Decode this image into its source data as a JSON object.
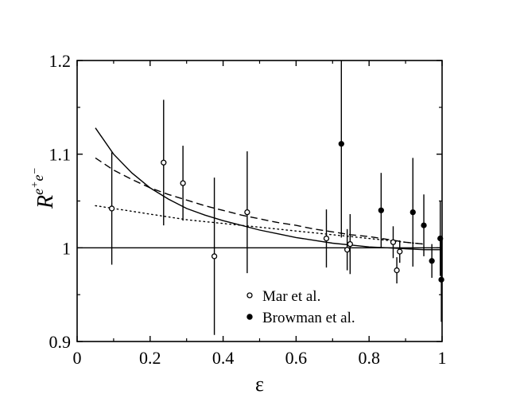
{
  "chart_data": {
    "type": "scatter",
    "title": "",
    "xlabel": "ε",
    "ylabel": {
      "base": "R",
      "sup_e1": "e",
      "sup_p": "+",
      "sup_e2": "e",
      "sup_m": "−"
    },
    "xlim": [
      0,
      1
    ],
    "ylim": [
      0.9,
      1.2
    ],
    "xticks": [
      0,
      0.2,
      0.4,
      0.6,
      0.8,
      1
    ],
    "xtick_labels": [
      "0",
      "0.2",
      "0.4",
      "0.6",
      "0.8",
      "1"
    ],
    "yticks": [
      0.9,
      1.0,
      1.1,
      1.2
    ],
    "ytick_labels": [
      "0.9",
      "1",
      "1.1",
      "1.2"
    ],
    "reference_line": 1.0,
    "series": [
      {
        "name": "Mar et al.",
        "marker": "open-circle",
        "points": [
          {
            "x": 0.095,
            "y": 1.042,
            "err": 0.06
          },
          {
            "x": 0.237,
            "y": 1.091,
            "err": 0.067
          },
          {
            "x": 0.29,
            "y": 1.069,
            "err": 0.04
          },
          {
            "x": 0.376,
            "y": 0.991,
            "err": 0.084
          },
          {
            "x": 0.466,
            "y": 1.038,
            "err": 0.065
          },
          {
            "x": 0.683,
            "y": 1.01,
            "err": 0.031
          },
          {
            "x": 0.74,
            "y": 0.998,
            "err": 0.022
          },
          {
            "x": 0.748,
            "y": 1.004,
            "err": 0.032
          },
          {
            "x": 0.866,
            "y": 1.006,
            "err": 0.017
          },
          {
            "x": 0.876,
            "y": 0.976,
            "err": 0.014
          },
          {
            "x": 0.884,
            "y": 0.996,
            "err": 0.012
          }
        ]
      },
      {
        "name": "Browman et al.",
        "marker": "filled-circle",
        "points": [
          {
            "x": 0.724,
            "y": 1.111,
            "err": 0.1
          },
          {
            "x": 0.833,
            "y": 1.04,
            "err": 0.04
          },
          {
            "x": 0.92,
            "y": 1.038,
            "err": 0.058
          },
          {
            "x": 0.95,
            "y": 1.024,
            "err": 0.033
          },
          {
            "x": 0.972,
            "y": 0.986,
            "err": 0.018
          },
          {
            "x": 0.995,
            "y": 1.01,
            "err": 0.04
          },
          {
            "x": 0.998,
            "y": 0.966,
            "err": 0.045
          }
        ]
      }
    ],
    "curves": [
      {
        "name": "solid",
        "style": "solid",
        "points": [
          [
            0.05,
            1.128
          ],
          [
            0.1,
            1.1
          ],
          [
            0.15,
            1.08
          ],
          [
            0.2,
            1.064
          ],
          [
            0.25,
            1.052
          ],
          [
            0.3,
            1.042
          ],
          [
            0.35,
            1.035
          ],
          [
            0.4,
            1.029
          ],
          [
            0.45,
            1.024
          ],
          [
            0.5,
            1.019
          ],
          [
            0.55,
            1.015
          ],
          [
            0.6,
            1.011
          ],
          [
            0.65,
            1.008
          ],
          [
            0.7,
            1.005
          ],
          [
            0.75,
            1.003
          ],
          [
            0.8,
            1.001
          ],
          [
            0.85,
            1.0
          ],
          [
            0.9,
            0.999
          ],
          [
            0.95,
            0.998
          ],
          [
            1.0,
            0.998
          ]
        ]
      },
      {
        "name": "dashed",
        "style": "dashed",
        "points": [
          [
            0.05,
            1.096
          ],
          [
            0.1,
            1.083
          ],
          [
            0.15,
            1.073
          ],
          [
            0.2,
            1.064
          ],
          [
            0.25,
            1.057
          ],
          [
            0.3,
            1.051
          ],
          [
            0.35,
            1.045
          ],
          [
            0.4,
            1.04
          ],
          [
            0.45,
            1.035
          ],
          [
            0.5,
            1.031
          ],
          [
            0.55,
            1.027
          ],
          [
            0.6,
            1.024
          ],
          [
            0.65,
            1.02
          ],
          [
            0.7,
            1.017
          ],
          [
            0.75,
            1.014
          ],
          [
            0.8,
            1.012
          ],
          [
            0.85,
            1.009
          ],
          [
            0.9,
            1.006
          ],
          [
            0.95,
            1.004
          ]
        ]
      },
      {
        "name": "dotted",
        "style": "dotted",
        "points": [
          [
            0.05,
            1.045
          ],
          [
            0.1,
            1.042
          ],
          [
            0.15,
            1.039
          ],
          [
            0.2,
            1.036
          ],
          [
            0.25,
            1.033
          ],
          [
            0.3,
            1.03
          ],
          [
            0.35,
            1.028
          ],
          [
            0.4,
            1.026
          ],
          [
            0.45,
            1.024
          ],
          [
            0.5,
            1.022
          ],
          [
            0.55,
            1.02
          ],
          [
            0.6,
            1.018
          ],
          [
            0.65,
            1.016
          ],
          [
            0.7,
            1.014
          ],
          [
            0.75,
            1.012
          ],
          [
            0.8,
            1.01
          ],
          [
            0.85,
            1.008
          ],
          [
            0.9,
            1.006
          ],
          [
            0.95,
            1.004
          ]
        ]
      }
    ],
    "legend_position": "bottom-right"
  }
}
